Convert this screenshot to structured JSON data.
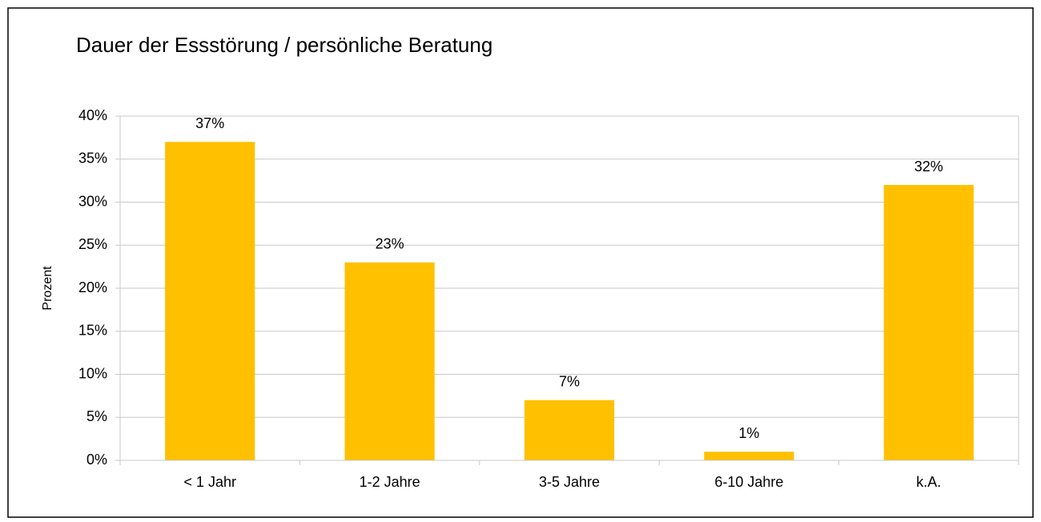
{
  "chart_data": {
    "type": "bar",
    "title": "Dauer der Essstörung / persönliche Beratung",
    "y_label": "Prozent",
    "categories": [
      "< 1 Jahr",
      "1-2 Jahre",
      "3-5 Jahre",
      "6-10 Jahre",
      "k.A."
    ],
    "values": [
      37,
      23,
      7,
      1,
      32
    ],
    "value_labels": [
      "37%",
      "23%",
      "7%",
      "1%",
      "32%"
    ],
    "color": "#ffc000",
    "ylim": [
      0,
      40
    ],
    "yticks": [
      {
        "value": 0,
        "label": "0%"
      },
      {
        "value": 5,
        "label": "5%"
      },
      {
        "value": 10,
        "label": "10%"
      },
      {
        "value": 15,
        "label": "15%"
      },
      {
        "value": 20,
        "label": "20%"
      },
      {
        "value": 25,
        "label": "25%"
      },
      {
        "value": 30,
        "label": "30%"
      },
      {
        "value": 35,
        "label": "35%"
      },
      {
        "value": 40,
        "label": "40%"
      }
    ],
    "grid": true
  }
}
